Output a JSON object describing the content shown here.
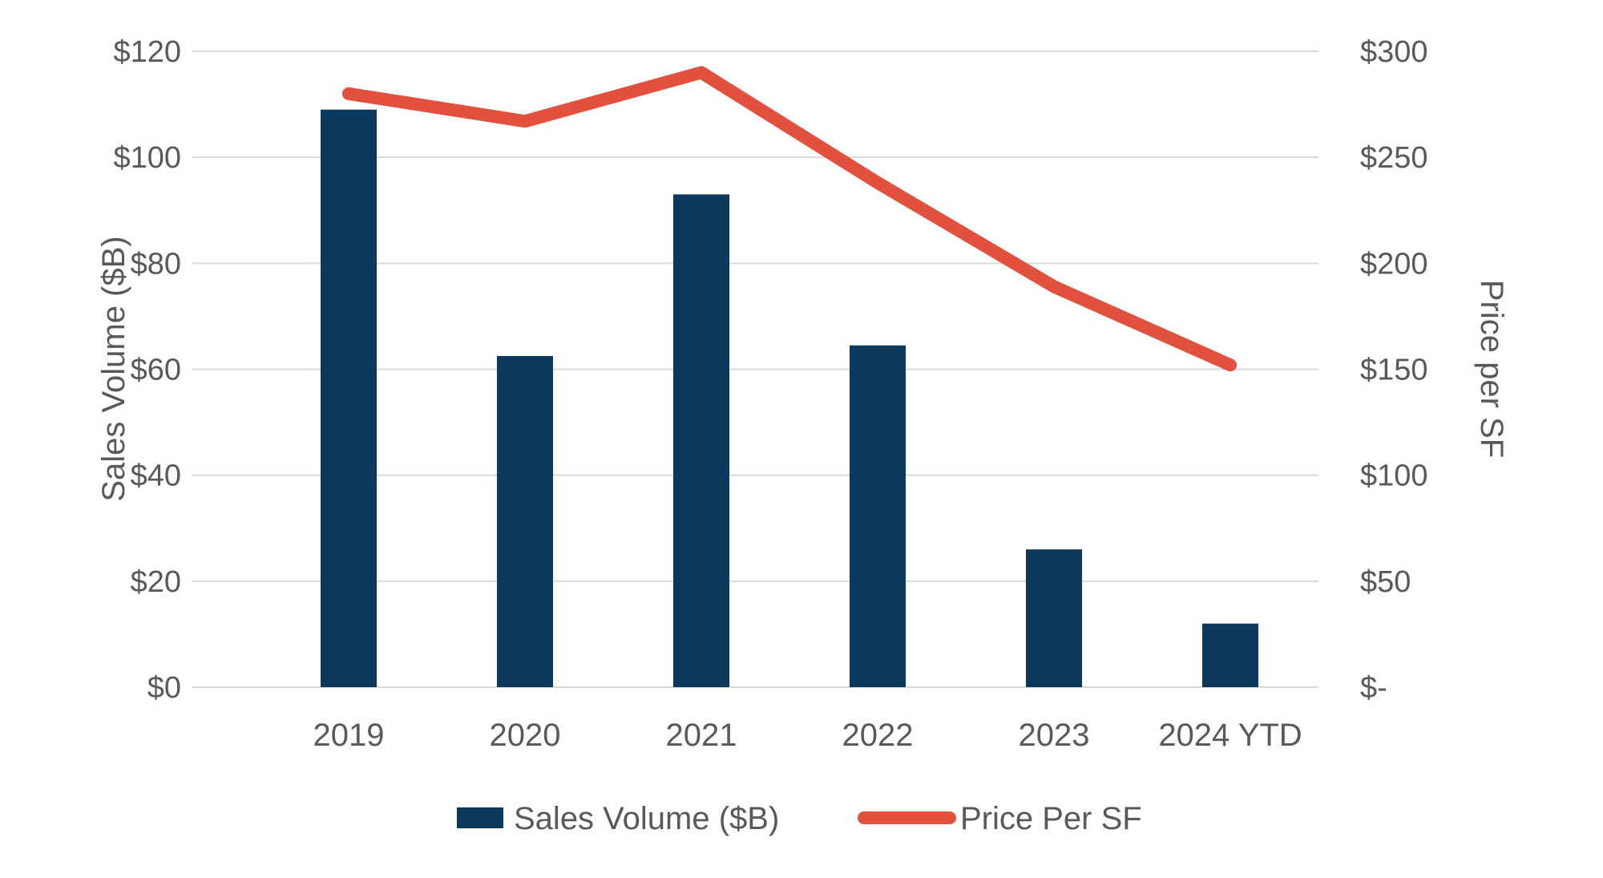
{
  "chart_data": {
    "type": "bar",
    "subtype": "combo-bar-line-dual-axis",
    "title": "",
    "categories": [
      "2019",
      "2020",
      "2021",
      "2022",
      "2023",
      "2024 YTD"
    ],
    "series": [
      {
        "name": "Sales Volume ($B)",
        "type": "bar",
        "axis": "left",
        "color": "#0c3a5e",
        "values": [
          109,
          62.5,
          93,
          64.5,
          26,
          12
        ]
      },
      {
        "name": "Price Per SF",
        "type": "line",
        "axis": "right",
        "color": "#e2513e",
        "values": [
          280,
          267,
          290,
          238,
          189,
          152
        ]
      }
    ],
    "left_axis": {
      "title": "Sales Volume ($B)",
      "min": 0,
      "max": 120,
      "step": 20,
      "tick_labels": [
        "$0",
        "$20",
        "$40",
        "$60",
        "$80",
        "$100",
        "$120"
      ]
    },
    "right_axis": {
      "title": "Price per SF",
      "min": 0,
      "max": 300,
      "step": 50,
      "tick_labels": [
        "$-",
        "$50",
        "$100",
        "$150",
        "$200",
        "$250",
        "$300"
      ]
    },
    "grid": true,
    "legend": {
      "position": "bottom",
      "items": [
        {
          "label": "Sales Volume ($B)",
          "swatch": "bar",
          "color": "#0c3a5e"
        },
        {
          "label": "Price Per SF",
          "swatch": "line",
          "color": "#e2513e"
        }
      ]
    },
    "colors": {
      "bar": "#0c3a5e",
      "line": "#e2513e",
      "text": "#595959",
      "gridline": "#d9d9d9",
      "background": "#ffffff"
    }
  }
}
